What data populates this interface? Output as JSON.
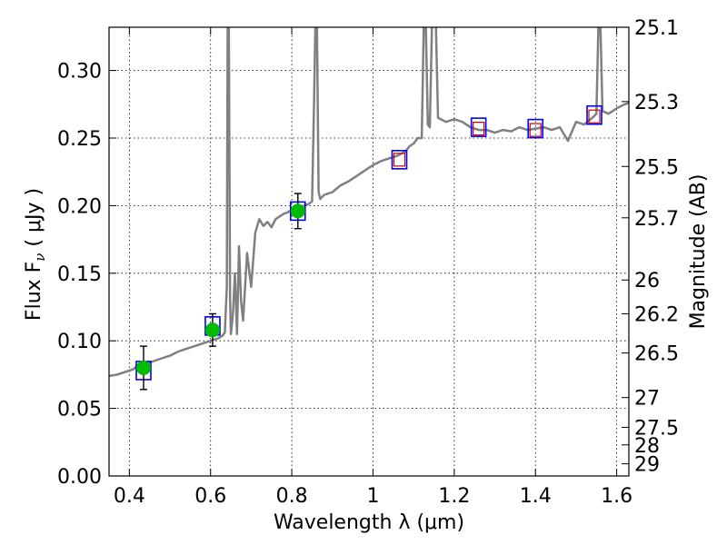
{
  "chart_data": {
    "type": "line",
    "xlabel": "Wavelength  λ (μm)",
    "ylabel_left": "Flux  F",
    "ylabel_left_sub": "ν",
    "ylabel_left_unit": " ( μJy )",
    "ylabel_right": "Magnitude (AB)",
    "xlim": [
      0.35,
      1.63
    ],
    "ylim": [
      0.0,
      0.332
    ],
    "grid": true,
    "x_ticks": [
      0.4,
      0.6,
      0.8,
      1.0,
      1.2,
      1.4,
      1.6
    ],
    "x_tick_labels": [
      "0.4",
      "0.6",
      "0.8",
      "1",
      "1.2",
      "1.4",
      "1.6"
    ],
    "y_ticks": [
      0.0,
      0.05,
      0.1,
      0.15,
      0.2,
      0.25,
      0.3
    ],
    "y_tick_labels": [
      "0.00",
      "0.05",
      "0.10",
      "0.15",
      "0.20",
      "0.25",
      "0.30"
    ],
    "right_ticks": [
      {
        "label": "25.1",
        "flux": 0.332
      },
      {
        "label": "25.3",
        "flux": 0.277
      },
      {
        "label": "25.5",
        "flux": 0.229
      },
      {
        "label": "25.7",
        "flux": 0.191
      },
      {
        "label": "26",
        "flux": 0.145
      },
      {
        "label": "26.2",
        "flux": 0.12
      },
      {
        "label": "26.5",
        "flux": 0.091
      },
      {
        "label": "27",
        "flux": 0.058
      },
      {
        "label": "27.5",
        "flux": 0.036
      },
      {
        "label": "28",
        "flux": 0.023
      },
      {
        "label": "29",
        "flux": 0.009
      }
    ],
    "series": [
      {
        "kind": "spectrum",
        "color": "#808080",
        "points": [
          [
            0.35,
            0.074
          ],
          [
            0.37,
            0.075
          ],
          [
            0.39,
            0.077
          ],
          [
            0.41,
            0.079
          ],
          [
            0.42,
            0.082
          ],
          [
            0.44,
            0.083
          ],
          [
            0.46,
            0.085
          ],
          [
            0.48,
            0.087
          ],
          [
            0.5,
            0.089
          ],
          [
            0.52,
            0.092
          ],
          [
            0.54,
            0.094
          ],
          [
            0.56,
            0.096
          ],
          [
            0.58,
            0.098
          ],
          [
            0.6,
            0.1
          ],
          [
            0.62,
            0.102
          ],
          [
            0.63,
            0.104
          ],
          [
            0.635,
            0.106
          ],
          [
            0.64,
            0.14
          ],
          [
            0.642,
            0.333
          ],
          [
            0.645,
            0.333
          ],
          [
            0.648,
            0.13
          ],
          [
            0.65,
            0.105
          ],
          [
            0.655,
            0.12
          ],
          [
            0.66,
            0.15
          ],
          [
            0.665,
            0.105
          ],
          [
            0.67,
            0.17
          ],
          [
            0.675,
            0.13
          ],
          [
            0.68,
            0.115
          ],
          [
            0.69,
            0.165
          ],
          [
            0.7,
            0.14
          ],
          [
            0.71,
            0.18
          ],
          [
            0.72,
            0.19
          ],
          [
            0.73,
            0.185
          ],
          [
            0.74,
            0.188
          ],
          [
            0.75,
            0.184
          ],
          [
            0.76,
            0.19
          ],
          [
            0.77,
            0.192
          ],
          [
            0.78,
            0.194
          ],
          [
            0.79,
            0.195
          ],
          [
            0.8,
            0.197
          ],
          [
            0.82,
            0.199
          ],
          [
            0.84,
            0.201
          ],
          [
            0.85,
            0.203
          ],
          [
            0.855,
            0.28
          ],
          [
            0.858,
            0.333
          ],
          [
            0.862,
            0.333
          ],
          [
            0.866,
            0.21
          ],
          [
            0.87,
            0.205
          ],
          [
            0.88,
            0.208
          ],
          [
            0.9,
            0.21
          ],
          [
            0.92,
            0.215
          ],
          [
            0.94,
            0.218
          ],
          [
            0.96,
            0.222
          ],
          [
            0.98,
            0.226
          ],
          [
            1.0,
            0.23
          ],
          [
            1.02,
            0.233
          ],
          [
            1.04,
            0.235
          ],
          [
            1.06,
            0.237
          ],
          [
            1.08,
            0.24
          ],
          [
            1.09,
            0.244
          ],
          [
            1.1,
            0.246
          ],
          [
            1.11,
            0.25
          ],
          [
            1.12,
            0.25
          ],
          [
            1.125,
            0.333
          ],
          [
            1.13,
            0.333
          ],
          [
            1.135,
            0.26
          ],
          [
            1.14,
            0.258
          ],
          [
            1.145,
            0.333
          ],
          [
            1.155,
            0.333
          ],
          [
            1.16,
            0.265
          ],
          [
            1.18,
            0.262
          ],
          [
            1.2,
            0.264
          ],
          [
            1.22,
            0.262
          ],
          [
            1.24,
            0.258
          ],
          [
            1.26,
            0.256
          ],
          [
            1.28,
            0.256
          ],
          [
            1.3,
            0.254
          ],
          [
            1.32,
            0.256
          ],
          [
            1.34,
            0.255
          ],
          [
            1.36,
            0.258
          ],
          [
            1.38,
            0.256
          ],
          [
            1.4,
            0.257
          ],
          [
            1.42,
            0.258
          ],
          [
            1.44,
            0.256
          ],
          [
            1.46,
            0.258
          ],
          [
            1.48,
            0.248
          ],
          [
            1.5,
            0.262
          ],
          [
            1.52,
            0.26
          ],
          [
            1.54,
            0.265
          ],
          [
            1.55,
            0.268
          ],
          [
            1.555,
            0.333
          ],
          [
            1.56,
            0.333
          ],
          [
            1.565,
            0.27
          ],
          [
            1.58,
            0.268
          ],
          [
            1.6,
            0.272
          ],
          [
            1.62,
            0.275
          ],
          [
            1.63,
            0.276
          ]
        ]
      },
      {
        "kind": "model_boxes",
        "color": "#0000ff",
        "points": [
          [
            0.435,
            0.078
          ],
          [
            0.605,
            0.111
          ],
          [
            0.815,
            0.196
          ],
          [
            1.065,
            0.234
          ],
          [
            1.26,
            0.258
          ],
          [
            1.4,
            0.257
          ],
          [
            1.545,
            0.267
          ]
        ]
      },
      {
        "kind": "observed_points",
        "color": "#00bb00",
        "points": [
          {
            "x": 0.435,
            "y": 0.08,
            "err": 0.016
          },
          {
            "x": 0.605,
            "y": 0.108,
            "err": 0.012
          },
          {
            "x": 0.815,
            "y": 0.196,
            "err": 0.013
          }
        ]
      },
      {
        "kind": "upper_limits",
        "color": "#cc0000",
        "points": [
          [
            1.065,
            0.234
          ],
          [
            1.26,
            0.257
          ],
          [
            1.4,
            0.256
          ],
          [
            1.545,
            0.266
          ]
        ]
      }
    ]
  }
}
